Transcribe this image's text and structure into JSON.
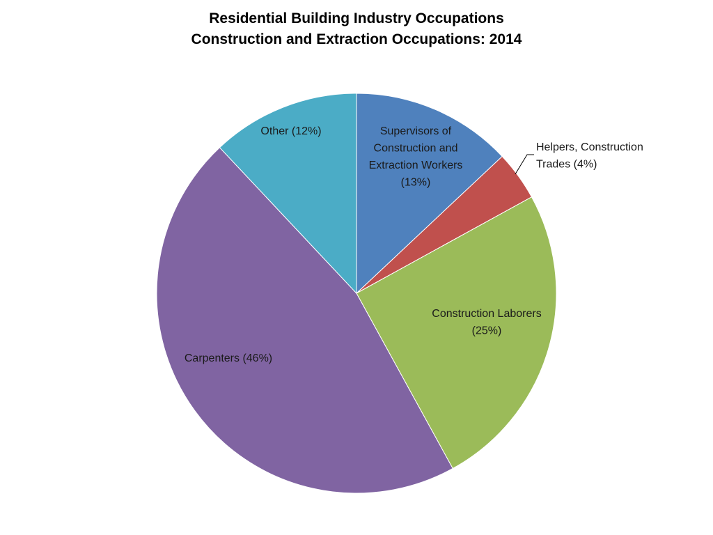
{
  "chart_data": {
    "type": "pie",
    "title_lines": [
      "Residential Building Industry Occupations",
      "Construction and Extraction Occupations: 2014"
    ],
    "start_angle_deg": 0,
    "direction": "clockwise",
    "slices": [
      {
        "name": "Supervisors of Construction and Extraction Workers",
        "value": 13,
        "color": "#4F81BD",
        "label_lines": [
          "Supervisors of",
          "Construction and",
          "Extraction Workers",
          "(13%)"
        ],
        "label_position": "inside"
      },
      {
        "name": "Helpers, Construction Trades",
        "value": 4,
        "color": "#C0504D",
        "label_lines": [
          "Helpers, Construction",
          "Trades (4%)"
        ],
        "label_position": "outside-with-leader"
      },
      {
        "name": "Construction Laborers",
        "value": 25,
        "color": "#9BBB59",
        "label_lines": [
          "Construction Laborers",
          "(25%)"
        ],
        "label_position": "inside"
      },
      {
        "name": "Carpenters",
        "value": 46,
        "color": "#8064A2",
        "label_lines": [
          "Carpenters (46%)"
        ],
        "label_position": "inside"
      },
      {
        "name": "Other",
        "value": 12,
        "color": "#4BACC6",
        "label_lines": [
          "Other (12%)"
        ],
        "label_position": "inside"
      }
    ],
    "legend": "none"
  }
}
